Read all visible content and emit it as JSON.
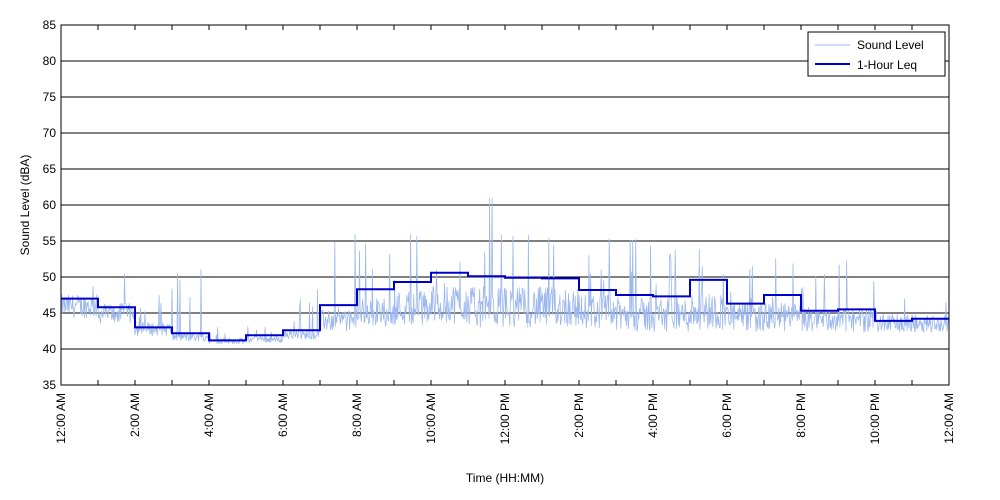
{
  "chart_data": {
    "type": "line",
    "title": "",
    "xlabel": "Time (HH:MM)",
    "ylabel": "Sound Level (dBA)",
    "ylim": [
      35,
      85
    ],
    "yticks": [
      35,
      40,
      45,
      50,
      55,
      60,
      65,
      70,
      75,
      80,
      85
    ],
    "xlim_hours": [
      0,
      24
    ],
    "xtick_labels": [
      "12:00 AM",
      "2:00 AM",
      "4:00 AM",
      "6:00 AM",
      "8:00 AM",
      "10:00 AM",
      "12:00 PM",
      "2:00 PM",
      "4:00 PM",
      "6:00 PM",
      "8:00 PM",
      "10:00 PM",
      "12:00 AM"
    ],
    "grid": "horizontal",
    "legend_position": "top-right",
    "colors": {
      "sound_level": "#9db8ee",
      "leq": "#0000cc"
    },
    "series": [
      {
        "name": "Sound Level",
        "hourly_profile": [
          {
            "hour": 0,
            "base": 45.5,
            "spread": 2.0,
            "peak": 52.5
          },
          {
            "hour": 1,
            "base": 44.5,
            "spread": 1.8,
            "peak": 50.5
          },
          {
            "hour": 2,
            "base": 42.5,
            "spread": 1.2,
            "peak": 48.0
          },
          {
            "hour": 3,
            "base": 41.5,
            "spread": 0.8,
            "peak": 51.0
          },
          {
            "hour": 4,
            "base": 41.0,
            "spread": 0.5,
            "peak": 43.0
          },
          {
            "hour": 5,
            "base": 41.2,
            "spread": 0.6,
            "peak": 44.0
          },
          {
            "hour": 6,
            "base": 41.8,
            "spread": 0.8,
            "peak": 51.0
          },
          {
            "hour": 7,
            "base": 43.5,
            "spread": 1.8,
            "peak": 56.0
          },
          {
            "hour": 8,
            "base": 44.5,
            "spread": 2.5,
            "peak": 56.0
          },
          {
            "hour": 9,
            "base": 45.0,
            "spread": 3.0,
            "peak": 56.5
          },
          {
            "hour": 10,
            "base": 45.5,
            "spread": 3.5,
            "peak": 56.5
          },
          {
            "hour": 11,
            "base": 45.0,
            "spread": 3.5,
            "peak": 61.0
          },
          {
            "hour": 12,
            "base": 45.0,
            "spread": 3.5,
            "peak": 56.0
          },
          {
            "hour": 13,
            "base": 45.0,
            "spread": 3.5,
            "peak": 58.5
          },
          {
            "hour": 14,
            "base": 44.5,
            "spread": 3.0,
            "peak": 56.0
          },
          {
            "hour": 15,
            "base": 44.0,
            "spread": 3.0,
            "peak": 56.0
          },
          {
            "hour": 16,
            "base": 44.0,
            "spread": 3.0,
            "peak": 55.0
          },
          {
            "hour": 17,
            "base": 44.5,
            "spread": 3.2,
            "peak": 57.5
          },
          {
            "hour": 18,
            "base": 43.8,
            "spread": 2.5,
            "peak": 51.5
          },
          {
            "hour": 19,
            "base": 43.8,
            "spread": 2.5,
            "peak": 55.0
          },
          {
            "hour": 20,
            "base": 43.5,
            "spread": 2.0,
            "peak": 51.5
          },
          {
            "hour": 21,
            "base": 43.5,
            "spread": 2.0,
            "peak": 53.0
          },
          {
            "hour": 22,
            "base": 43.2,
            "spread": 1.5,
            "peak": 48.0
          },
          {
            "hour": 23,
            "base": 43.2,
            "spread": 1.5,
            "peak": 47.0
          }
        ]
      },
      {
        "name": "1-Hour Leq",
        "hourly_values": [
          47.0,
          45.8,
          43.0,
          42.2,
          41.2,
          41.9,
          42.6,
          46.1,
          48.3,
          49.3,
          50.6,
          50.1,
          49.9,
          49.8,
          48.2,
          47.5,
          47.3,
          49.6,
          46.3,
          47.5,
          45.3,
          45.5,
          43.9,
          44.2
        ]
      }
    ]
  }
}
